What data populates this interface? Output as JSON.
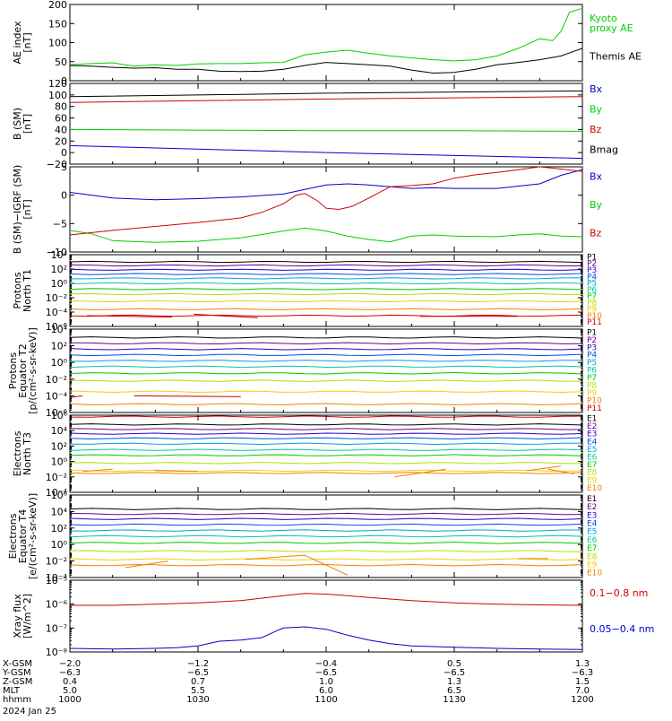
{
  "colors": {
    "black": "#000000",
    "green": "#00d000",
    "red": "#d00000",
    "blue": "#0000d0",
    "p": [
      "#000000",
      "#6a0090",
      "#2a00c8",
      "#0050e0",
      "#00a0e0",
      "#00c8a0",
      "#00c800",
      "#b0e000",
      "#f0d000",
      "#f08000",
      "#d00000",
      "#a00000"
    ]
  },
  "chart_data": [
    {
      "type": "line",
      "ylabel": "AE index\n[nT]",
      "ylim": [
        0,
        200
      ],
      "yticks": [
        0,
        50,
        100,
        150,
        200
      ],
      "yticklabels": [
        "0",
        "50",
        "100",
        "150",
        "200"
      ],
      "legend": [
        {
          "label": "Kyoto\nproxy AE",
          "color": "#00d000"
        },
        {
          "label": "Themis AE",
          "color": "#000000"
        }
      ],
      "series": [
        {
          "name": "Kyoto proxy AE",
          "color": "#00d000",
          "x": [
            1000,
            1005,
            1010,
            1015,
            1020,
            1025,
            1030,
            1035,
            1040,
            1045,
            1050,
            1055,
            1100,
            1105,
            1110,
            1115,
            1120,
            1125,
            1130,
            1135,
            1140,
            1145,
            1150,
            1153,
            1155,
            1157,
            1200
          ],
          "y": [
            42,
            45,
            47,
            38,
            42,
            40,
            44,
            45,
            45,
            47,
            48,
            68,
            75,
            80,
            72,
            65,
            60,
            55,
            52,
            55,
            65,
            85,
            110,
            105,
            130,
            180,
            190
          ]
        },
        {
          "name": "Themis AE",
          "color": "#000000",
          "x": [
            1000,
            1005,
            1010,
            1015,
            1020,
            1025,
            1030,
            1035,
            1040,
            1045,
            1050,
            1055,
            1100,
            1105,
            1110,
            1115,
            1120,
            1125,
            1130,
            1135,
            1140,
            1145,
            1150,
            1155,
            1200
          ],
          "y": [
            40,
            38,
            35,
            33,
            34,
            30,
            30,
            25,
            24,
            25,
            30,
            40,
            48,
            45,
            42,
            38,
            28,
            20,
            22,
            30,
            42,
            48,
            55,
            65,
            85
          ]
        }
      ]
    },
    {
      "type": "line",
      "ylabel": "B (SM)\n[nT]",
      "ylim": [
        -20,
        120
      ],
      "yticks": [
        -20,
        0,
        20,
        40,
        60,
        80,
        100,
        120
      ],
      "yticklabels": [
        "−20",
        "0",
        "20",
        "40",
        "60",
        "80",
        "100",
        "120"
      ],
      "legend": [
        {
          "label": "Bx",
          "color": "#0000d0"
        },
        {
          "label": "By",
          "color": "#00d000"
        },
        {
          "label": "Bz",
          "color": "#d00000"
        },
        {
          "label": "Bmag",
          "color": "#000000"
        }
      ],
      "series": [
        {
          "name": "Bmag",
          "color": "#000000",
          "x": [
            1000,
            1030,
            1100,
            1130,
            1200
          ],
          "y": [
            97,
            100,
            103,
            105,
            107
          ]
        },
        {
          "name": "Bz",
          "color": "#d00000",
          "x": [
            1000,
            1030,
            1100,
            1130,
            1200
          ],
          "y": [
            87,
            90,
            93,
            95,
            97
          ]
        },
        {
          "name": "By",
          "color": "#00d000",
          "x": [
            1000,
            1030,
            1100,
            1130,
            1200
          ],
          "y": [
            40,
            39,
            38,
            38,
            37
          ]
        },
        {
          "name": "Bx",
          "color": "#0000d0",
          "x": [
            1000,
            1030,
            1100,
            1130,
            1200
          ],
          "y": [
            12,
            6,
            0,
            -5,
            -10
          ]
        }
      ]
    },
    {
      "type": "line",
      "ylabel": "B (SM)−IGRF (SM)\n[nT]",
      "ylim": [
        -10,
        5
      ],
      "yticks": [
        -10,
        -5,
        0,
        5
      ],
      "yticklabels": [
        "−10",
        "−5",
        "0",
        "5"
      ],
      "legend": [
        {
          "label": "Bx",
          "color": "#0000d0"
        },
        {
          "label": "By",
          "color": "#00d000"
        },
        {
          "label": "Bz",
          "color": "#d00000"
        }
      ],
      "series": [
        {
          "name": "Bx",
          "color": "#0000d0",
          "x": [
            1000,
            1010,
            1020,
            1030,
            1040,
            1050,
            1055,
            1100,
            1105,
            1110,
            1115,
            1120,
            1125,
            1130,
            1140,
            1150,
            1155,
            1200
          ],
          "y": [
            0.5,
            -0.5,
            -0.8,
            -0.6,
            -0.3,
            0.2,
            1.0,
            1.8,
            2.0,
            1.8,
            1.5,
            1.2,
            1.3,
            1.2,
            1.2,
            2.0,
            3.5,
            4.5
          ]
        },
        {
          "name": "By",
          "color": "#00d000",
          "x": [
            1000,
            1005,
            1010,
            1020,
            1030,
            1040,
            1050,
            1055,
            1100,
            1105,
            1110,
            1115,
            1120,
            1125,
            1130,
            1140,
            1145,
            1150,
            1155,
            1200
          ],
          "y": [
            -6.2,
            -6.8,
            -8.0,
            -8.3,
            -8.1,
            -7.5,
            -6.3,
            -5.8,
            -6.3,
            -7.2,
            -7.8,
            -8.2,
            -7.2,
            -7.0,
            -7.2,
            -7.3,
            -7.0,
            -6.8,
            -7.2,
            -7.3
          ]
        },
        {
          "name": "Bz",
          "color": "#d00000",
          "x": [
            1000,
            1010,
            1020,
            1030,
            1040,
            1045,
            1050,
            1053,
            1055,
            1058,
            1100,
            1103,
            1106,
            1110,
            1115,
            1120,
            1125,
            1130,
            1135,
            1140,
            1145,
            1150,
            1155,
            1200
          ],
          "y": [
            -7.0,
            -6.2,
            -5.5,
            -4.8,
            -4.0,
            -3.0,
            -1.5,
            0,
            0.3,
            -1.0,
            -2.3,
            -2.5,
            -2.0,
            -0.5,
            1.5,
            1.7,
            2.0,
            3.0,
            3.6,
            4.0,
            4.5,
            5.0,
            4.6,
            4.2
          ]
        }
      ]
    },
    {
      "type": "line",
      "log": true,
      "ylabel": "Protons\nNorth T1",
      "ylim": [
        -6,
        4
      ],
      "yticks": [
        -6,
        -4,
        -2,
        0,
        2,
        4
      ],
      "yticklabels": [
        "10⁻⁶",
        "10⁻⁴",
        "10⁻²",
        "10⁰",
        "10²",
        "10⁴"
      ],
      "legend": [
        "P1",
        "P2",
        "P3",
        "P4",
        "P5",
        "P6",
        "P7",
        "P8",
        "P9",
        "P10",
        "P11"
      ],
      "levels": [
        3.0,
        2.5,
        1.9,
        1.3,
        0.7,
        0.0,
        -0.8,
        -1.5,
        -2.5,
        -3.6,
        -4.5
      ],
      "gaps": [
        {
          "ch": 10,
          "x": [
            1004,
            1024
          ],
          "y": [
            -4.5,
            -4.7
          ]
        },
        {
          "ch": 10,
          "x": [
            1029,
            1044
          ],
          "y": [
            -4.3,
            -4.8
          ]
        },
        {
          "ch": 10,
          "x": [
            1122,
            1145
          ],
          "y": [
            -4.6,
            -4.6
          ]
        }
      ]
    },
    {
      "type": "line",
      "log": true,
      "ylabel": "Protons\nEquator T2\n[p/(cm²-s-sr-keV)]",
      "ylim": [
        -6,
        4
      ],
      "yticks": [
        -6,
        -4,
        -2,
        0,
        2,
        4
      ],
      "yticklabels": [
        "10⁻⁶",
        "10⁻⁴",
        "10⁻²",
        "10⁰",
        "10²",
        "10⁴"
      ],
      "legend": [
        "P1",
        "P2",
        "P3",
        "P4",
        "P5",
        "P6",
        "P7",
        "P8",
        "P9",
        "P10",
        "P11"
      ],
      "levels": [
        3.0,
        2.3,
        1.6,
        0.9,
        0.2,
        -0.5,
        -1.3,
        -2.2,
        -3.5,
        -5.0,
        -6.5
      ],
      "gaps": [
        {
          "ch": 10,
          "x": [
            1000,
            1003
          ],
          "y": [
            -4.2,
            -4.0
          ]
        },
        {
          "ch": 10,
          "x": [
            1015,
            1040
          ],
          "y": [
            -4.0,
            -4.1
          ]
        }
      ]
    },
    {
      "type": "line",
      "log": true,
      "ylabel": "Electrons\nNorth T3",
      "ylim": [
        -4,
        6
      ],
      "yticks": [
        -4,
        -2,
        0,
        2,
        4,
        6
      ],
      "yticklabels": [
        "10⁻⁴",
        "10⁻²",
        "10⁰",
        "10²",
        "10⁴",
        "10⁶"
      ],
      "legend": [
        "E1",
        "E2",
        "E3",
        "E4",
        "E5",
        "E6",
        "E7",
        "E8",
        "E9",
        "E10"
      ],
      "levels": [
        4.8,
        4.2,
        3.6,
        3.0,
        2.3,
        1.5,
        0.8,
        -0.2,
        -1.2,
        -1.5
      ],
      "gaps": [
        {
          "ch": 9,
          "x": [
            1003,
            1010
          ],
          "y": [
            -1.3,
            -1.0
          ]
        },
        {
          "ch": 9,
          "x": [
            1020,
            1030
          ],
          "y": [
            -1.2,
            -1.3
          ]
        },
        {
          "ch": 9,
          "x": [
            1116,
            1128
          ],
          "y": [
            -2.0,
            -1.0
          ]
        },
        {
          "ch": 9,
          "x": [
            1147,
            1155
          ],
          "y": [
            -1.2,
            -0.6
          ]
        },
        {
          "ch": 9,
          "x": [
            1152,
            1158
          ],
          "y": [
            -1.0,
            -1.6
          ]
        }
      ]
    },
    {
      "type": "line",
      "log": true,
      "ylabel": "Electrons\nEquator T4\n[e/(cm²-s-sr-keV)]",
      "ylim": [
        -4,
        6
      ],
      "yticks": [
        -4,
        -2,
        0,
        2,
        4,
        6
      ],
      "yticklabels": [
        "10⁻⁴",
        "10⁻²",
        "10⁰",
        "10²",
        "10⁴",
        "10⁶"
      ],
      "legend": [
        "E1",
        "E2",
        "E3",
        "E4",
        "E5",
        "E6",
        "E7",
        "E8",
        "E9",
        "E10"
      ],
      "levels": [
        4.3,
        3.7,
        3.1,
        2.4,
        1.7,
        1.0,
        0.2,
        -0.8,
        -1.8,
        -2.5
      ],
      "gaps": [
        {
          "ch": 9,
          "x": [
            1013,
            1023
          ],
          "y": [
            -2.8,
            -2.0
          ]
        },
        {
          "ch": 9,
          "x": [
            1041,
            1055
          ],
          "y": [
            -1.8,
            -1.3
          ]
        },
        {
          "ch": 9,
          "x": [
            1055,
            1105
          ],
          "y": [
            -1.3,
            -3.7
          ]
        },
        {
          "ch": 9,
          "x": [
            1145,
            1152
          ],
          "y": [
            -1.7,
            -1.7
          ]
        }
      ]
    },
    {
      "type": "line",
      "log": true,
      "ylabel": "Xray flux\n[W/m^2]",
      "ylim": [
        -8,
        -5
      ],
      "yticks": [
        -8,
        -7,
        -6,
        -5
      ],
      "yticklabels": [
        "10⁻⁸",
        "10⁻⁷",
        "10⁻⁶",
        "10⁻⁵"
      ],
      "legend": [
        {
          "label": "0.1−0.8 nm",
          "color": "#d00000"
        },
        {
          "label": "0.05−0.4 nm",
          "color": "#0000d0"
        }
      ],
      "series": [
        {
          "name": "0.1−0.8 nm",
          "color": "#d00000",
          "x": [
            1000,
            1010,
            1020,
            1030,
            1040,
            1045,
            1050,
            1055,
            1100,
            1105,
            1110,
            1120,
            1130,
            1140,
            1150,
            1200
          ],
          "y": [
            -6.05,
            -6.05,
            -6.0,
            -5.95,
            -5.85,
            -5.75,
            -5.65,
            -5.55,
            -5.58,
            -5.65,
            -5.72,
            -5.85,
            -5.95,
            -6.0,
            -6.03,
            -6.05
          ]
        },
        {
          "name": "0.05−0.4 nm",
          "color": "#0000d0",
          "x": [
            1000,
            1010,
            1020,
            1025,
            1030,
            1035,
            1040,
            1045,
            1048,
            1050,
            1055,
            1100,
            1105,
            1110,
            1115,
            1120,
            1130,
            1140,
            1150,
            1200
          ],
          "y": [
            -7.85,
            -7.88,
            -7.85,
            -7.82,
            -7.75,
            -7.55,
            -7.5,
            -7.4,
            -7.15,
            -7.0,
            -6.95,
            -7.05,
            -7.3,
            -7.5,
            -7.65,
            -7.75,
            -7.8,
            -7.85,
            -7.88,
            -7.9
          ]
        }
      ]
    }
  ],
  "xaxis": {
    "xlim": [
      1000,
      1200
    ],
    "ticks": [
      1000,
      1030,
      1100,
      1130,
      1200
    ],
    "rows": [
      {
        "label": "X-GSM",
        "values": [
          "−2.0",
          "−1.2",
          "−0.4",
          "0.5",
          "1.3"
        ]
      },
      {
        "label": "Y-GSM",
        "values": [
          "−6.3",
          "−6.5",
          "−6.5",
          "−6.5",
          "−6.3"
        ]
      },
      {
        "label": "Z-GSM",
        "values": [
          "0.4",
          "0.7",
          "1.0",
          "1.3",
          "1.5"
        ]
      },
      {
        "label": "MLT",
        "values": [
          "5.0",
          "5.5",
          "6.0",
          "6.5",
          "7.0"
        ]
      },
      {
        "label": "hhmm",
        "values": [
          "1000",
          "1030",
          "1100",
          "1130",
          "1200"
        ]
      }
    ],
    "date": "2024 Jan 25"
  }
}
